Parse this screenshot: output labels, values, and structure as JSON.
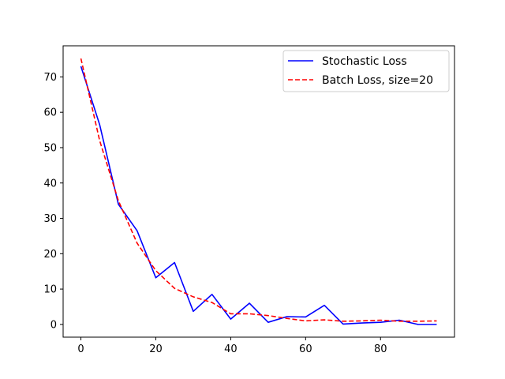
{
  "chart_data": {
    "type": "line",
    "title": "",
    "xlabel": "",
    "ylabel": "",
    "xlim": [
      -4.75,
      99.75
    ],
    "ylim": [
      -3.6,
      78.8
    ],
    "xticks": [
      0,
      20,
      40,
      60,
      80
    ],
    "yticks": [
      0,
      10,
      20,
      30,
      40,
      50,
      60,
      70
    ],
    "grid": false,
    "legend_position": "top-right",
    "series": [
      {
        "name": "Stochastic Loss",
        "color": "#0000ff",
        "style": "solid",
        "x": [
          0,
          5,
          10,
          15,
          20,
          25,
          30,
          35,
          40,
          45,
          50,
          55,
          60,
          65,
          70,
          75,
          80,
          85,
          90,
          95
        ],
        "y": [
          73.0,
          56.5,
          34.0,
          26.5,
          13.2,
          17.5,
          3.7,
          8.5,
          1.5,
          6.0,
          0.6,
          2.2,
          2.1,
          5.4,
          0.1,
          0.4,
          0.6,
          1.2,
          0.0,
          0.0
        ]
      },
      {
        "name": "Batch Loss, size=20",
        "color": "#ff0000",
        "style": "dashed",
        "x": [
          0,
          5,
          10,
          15,
          20,
          25,
          30,
          35,
          40,
          45,
          50,
          55,
          60,
          65,
          70,
          75,
          80,
          85,
          90,
          95
        ],
        "y": [
          75.2,
          52.0,
          35.0,
          23.0,
          15.2,
          10.2,
          7.8,
          6.2,
          3.0,
          3.0,
          2.5,
          1.7,
          1.0,
          1.3,
          0.9,
          1.0,
          1.2,
          0.9,
          0.9,
          1.0
        ]
      }
    ]
  }
}
